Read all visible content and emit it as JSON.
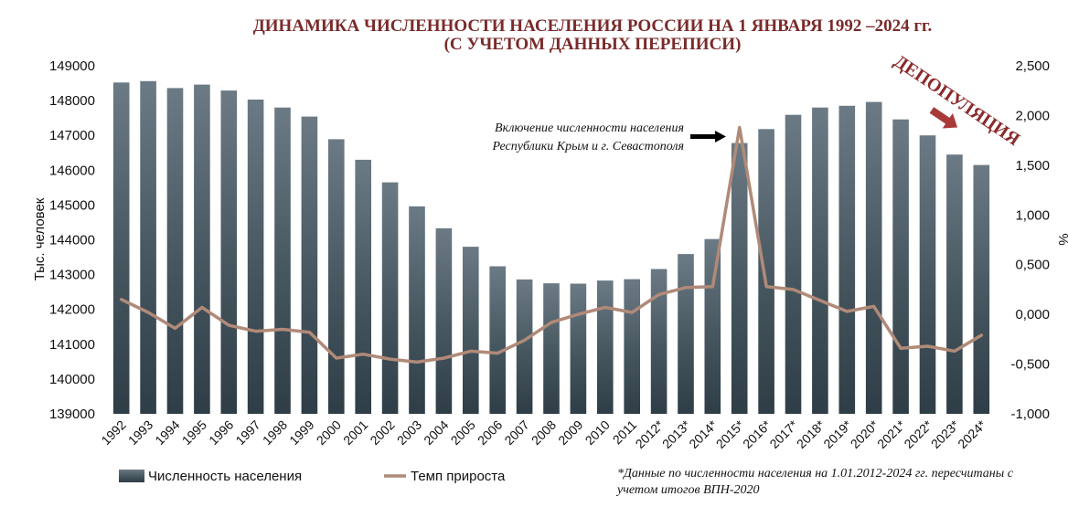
{
  "chart_data": {
    "type": "bar",
    "title_line1": "ДИНАМИКА ЧИСЛЕННОСТИ НАСЕЛЕНИЯ РОССИИ НА 1 ЯНВАРЯ 1992 –2024 гг.",
    "title_line2": "(С УЧЕТОМ ДАННЫХ ПЕРЕПИСИ)",
    "ylabel": "Тыс. человек",
    "ylabel_right": "%",
    "ylim": [
      139000,
      149000
    ],
    "ylim_right": [
      -1.0,
      2.5
    ],
    "y_ticks": [
      "139000",
      "140000",
      "141000",
      "142000",
      "143000",
      "144000",
      "145000",
      "146000",
      "147000",
      "148000",
      "149000"
    ],
    "y_ticks_right": [
      "-1,000",
      "-0,500",
      "0,000",
      "0,500",
      "1,000",
      "1,500",
      "2,000",
      "2,500"
    ],
    "categories": [
      "1992",
      "1993",
      "1994",
      "1995",
      "1996",
      "1997",
      "1998",
      "1999",
      "2000",
      "2001",
      "2002",
      "2003",
      "2004",
      "2005",
      "2006",
      "2007",
      "2008",
      "2009",
      "2010",
      "2011",
      "2012*",
      "2013*",
      "2014*",
      "2015*",
      "2016*",
      "2017*",
      "2018*",
      "2019*",
      "2020*",
      "2021*",
      "2022*",
      "2023*",
      "2024*"
    ],
    "series": [
      {
        "name": "Численность населения",
        "type": "bar",
        "color": "#3d4f5a",
        "values": [
          148520,
          148560,
          148360,
          148460,
          148290,
          148030,
          147800,
          147540,
          146890,
          146300,
          145650,
          144960,
          144330,
          143800,
          143240,
          142860,
          142750,
          142740,
          142830,
          142870,
          143160,
          143590,
          144020,
          146780,
          147180,
          147590,
          147800,
          147850,
          147960,
          147460,
          147000,
          146450,
          146150
        ]
      },
      {
        "name": "Темп прироста",
        "type": "line",
        "color": "#b08a78",
        "values": [
          0.15,
          0.02,
          -0.14,
          0.07,
          -0.11,
          -0.17,
          -0.15,
          -0.18,
          -0.44,
          -0.4,
          -0.45,
          -0.48,
          -0.44,
          -0.37,
          -0.39,
          -0.26,
          -0.08,
          0.0,
          0.07,
          0.02,
          0.2,
          0.27,
          0.28,
          1.88,
          0.28,
          0.25,
          0.14,
          0.03,
          0.08,
          -0.34,
          -0.32,
          -0.37,
          -0.21
        ]
      }
    ],
    "annotation_line1": "Включение численности населения",
    "annotation_line2": "Республики Крым и г. Севастополя",
    "depopulation_label": "ДЕПОПУЛЯЦИЯ",
    "legend_position": "bottom-left",
    "footnote_line1": "*Данные по численности населения на 1.01.2012-2024 гг. пересчитаны с",
    "footnote_line2": "учетом итогов ВПН-2020"
  }
}
